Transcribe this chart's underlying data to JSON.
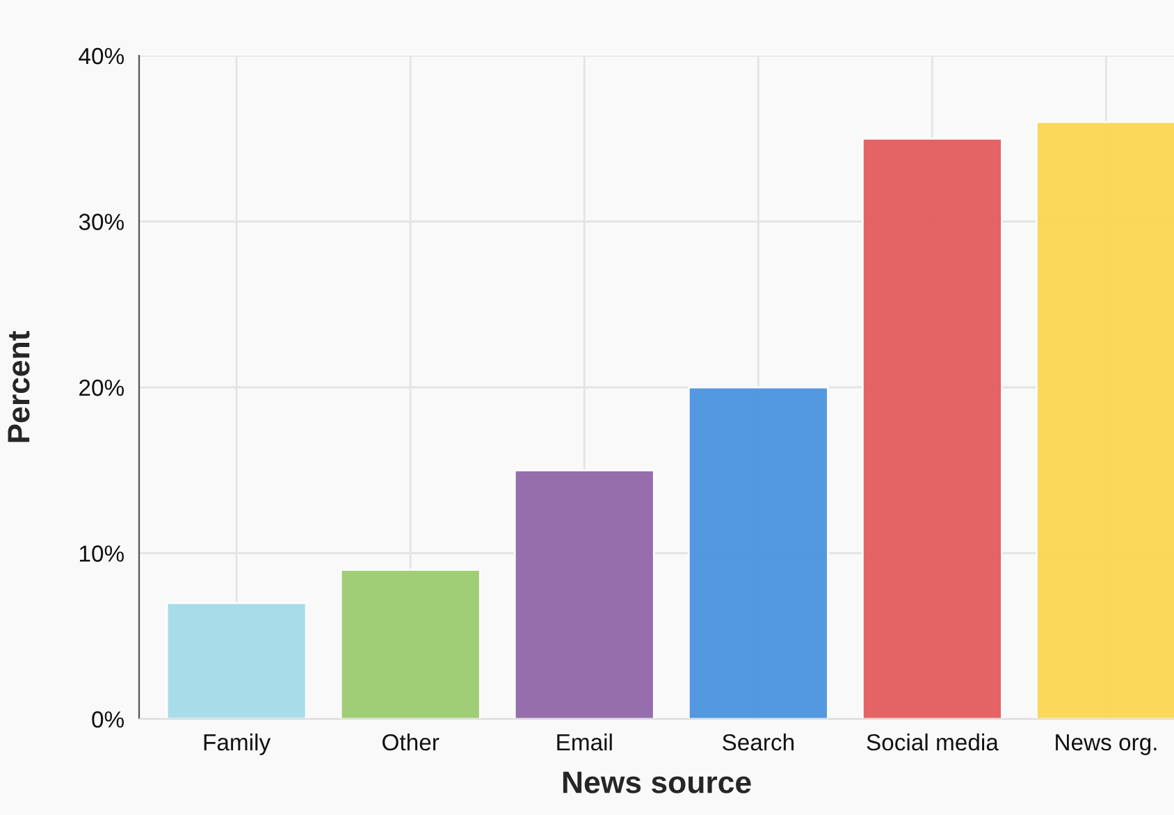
{
  "chart_data": {
    "type": "bar",
    "xlabel": "News source",
    "ylabel": "Percent",
    "categories": [
      "Family",
      "Other",
      "Email",
      "Search",
      "Social media",
      "News org."
    ],
    "values": [
      7,
      9,
      15,
      20,
      35,
      36
    ],
    "colors": [
      "#a4dbe8",
      "#9ccc70",
      "#9067a7",
      "#4a94de",
      "#e35d5e",
      "#fcd752"
    ],
    "ylim": [
      0,
      40
    ],
    "yticks": [
      {
        "value": 0,
        "label": "0%"
      },
      {
        "value": 10,
        "label": "10%"
      },
      {
        "value": 20,
        "label": "20%"
      },
      {
        "value": 30,
        "label": "30%"
      },
      {
        "value": 40,
        "label": "40%"
      }
    ],
    "grid": true
  }
}
